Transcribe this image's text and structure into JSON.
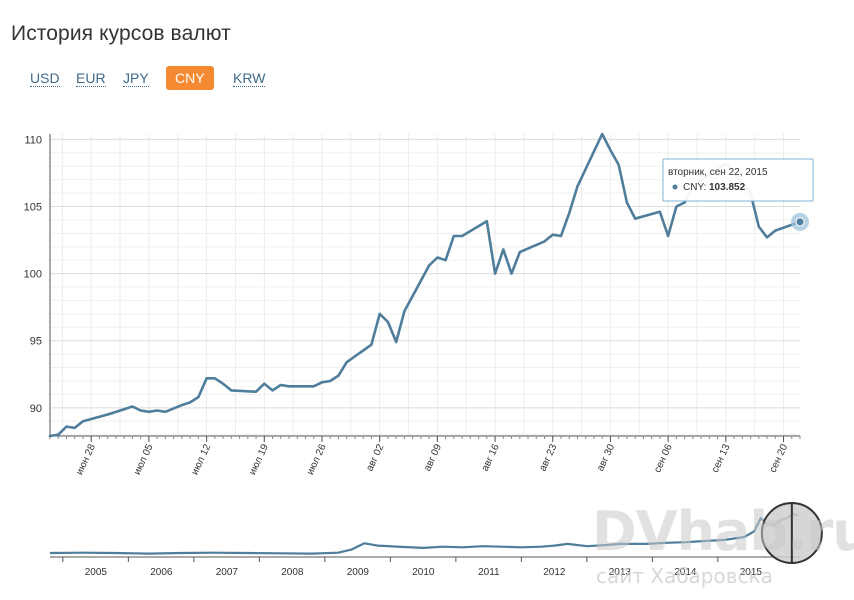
{
  "page": {
    "title": "История курсов валют"
  },
  "tabs": [
    {
      "id": "usd",
      "label": "USD",
      "active": false
    },
    {
      "id": "eur",
      "label": "EUR",
      "active": false
    },
    {
      "id": "jpy",
      "label": "JPY",
      "active": false
    },
    {
      "id": "cny",
      "label": "CNY",
      "active": true
    },
    {
      "id": "krw",
      "label": "KRW",
      "active": false
    }
  ],
  "tooltip": {
    "date": "вторник, сен 22, 2015",
    "series_label": "CNY:",
    "value": "103.852"
  },
  "watermark": {
    "big": "DVhab.ru",
    "small": "сайт Хабаровска"
  },
  "colors": {
    "line": "#4f7d9c",
    "accent": "#f58a32",
    "tooltip_border": "#7fb4d6"
  },
  "chart_data": [
    {
      "type": "line",
      "id": "main",
      "series": [
        {
          "name": "CNY"
        }
      ],
      "yticks": [
        90,
        95,
        100,
        105,
        110
      ],
      "ylim": [
        87.9,
        110.4
      ],
      "xlim": [
        "2015-06-23",
        "2015-09-22"
      ],
      "xticks": [
        "2015-06-28",
        "2015-07-05",
        "2015-07-12",
        "2015-07-19",
        "2015-07-26",
        "2015-08-02",
        "2015-08-09",
        "2015-08-16",
        "2015-08-23",
        "2015-08-30",
        "2015-09-06",
        "2015-09-13",
        "2015-09-20"
      ],
      "xtick_labels": [
        "июн 28",
        "июл 05",
        "июл 12",
        "июл 19",
        "июл 26",
        "авг 02",
        "авг 09",
        "авг 16",
        "авг 23",
        "авг 30",
        "сен 06",
        "сен 13",
        "сен 20"
      ],
      "grid": true,
      "points": [
        [
          "2015-06-23",
          87.9
        ],
        [
          "2015-06-24",
          88.0
        ],
        [
          "2015-06-25",
          88.6
        ],
        [
          "2015-06-26",
          88.5
        ],
        [
          "2015-06-27",
          89.0
        ],
        [
          "2015-06-30",
          89.5
        ],
        [
          "2015-07-02",
          89.9
        ],
        [
          "2015-07-03",
          90.1
        ],
        [
          "2015-07-04",
          89.8
        ],
        [
          "2015-07-05",
          89.7
        ],
        [
          "2015-07-06",
          89.8
        ],
        [
          "2015-07-07",
          89.7
        ],
        [
          "2015-07-09",
          90.2
        ],
        [
          "2015-07-10",
          90.4
        ],
        [
          "2015-07-11",
          90.8
        ],
        [
          "2015-07-12",
          92.2
        ],
        [
          "2015-07-13",
          92.2
        ],
        [
          "2015-07-14",
          91.8
        ],
        [
          "2015-07-15",
          91.3
        ],
        [
          "2015-07-18",
          91.2
        ],
        [
          "2015-07-19",
          91.8
        ],
        [
          "2015-07-20",
          91.3
        ],
        [
          "2015-07-21",
          91.7
        ],
        [
          "2015-07-22",
          91.6
        ],
        [
          "2015-07-25",
          91.6
        ],
        [
          "2015-07-26",
          91.9
        ],
        [
          "2015-07-27",
          92.0
        ],
        [
          "2015-07-28",
          92.4
        ],
        [
          "2015-07-29",
          93.4
        ],
        [
          "2015-08-01",
          94.7
        ],
        [
          "2015-08-02",
          97.0
        ],
        [
          "2015-08-03",
          96.4
        ],
        [
          "2015-08-04",
          94.9
        ],
        [
          "2015-08-05",
          97.2
        ],
        [
          "2015-08-08",
          100.6
        ],
        [
          "2015-08-09",
          101.2
        ],
        [
          "2015-08-10",
          101.0
        ],
        [
          "2015-08-11",
          102.8
        ],
        [
          "2015-08-12",
          102.8
        ],
        [
          "2015-08-15",
          103.9
        ],
        [
          "2015-08-16",
          100.0
        ],
        [
          "2015-08-17",
          101.8
        ],
        [
          "2015-08-18",
          100.0
        ],
        [
          "2015-08-19",
          101.6
        ],
        [
          "2015-08-22",
          102.4
        ],
        [
          "2015-08-23",
          102.9
        ],
        [
          "2015-08-24",
          102.8
        ],
        [
          "2015-08-25",
          104.5
        ],
        [
          "2015-08-26",
          106.5
        ],
        [
          "2015-08-29",
          110.4
        ],
        [
          "2015-08-30",
          109.2
        ],
        [
          "2015-08-31",
          108.1
        ],
        [
          "2015-09-01",
          105.3
        ],
        [
          "2015-09-02",
          104.1
        ],
        [
          "2015-09-05",
          104.6
        ],
        [
          "2015-09-06",
          102.8
        ],
        [
          "2015-09-07",
          105.0
        ],
        [
          "2015-09-08",
          105.3
        ],
        [
          "2015-09-09",
          106.5
        ],
        [
          "2015-09-12",
          107.8
        ],
        [
          "2015-09-13",
          108.2
        ],
        [
          "2015-09-16",
          106.0
        ],
        [
          "2015-09-17",
          103.5
        ],
        [
          "2015-09-18",
          102.7
        ],
        [
          "2015-09-19",
          103.2
        ],
        [
          "2015-09-22",
          103.852
        ]
      ]
    },
    {
      "type": "line",
      "id": "navigator",
      "xlim": [
        2004.3,
        2015.75
      ],
      "ylim": [
        20,
        120
      ],
      "xtick_labels": [
        "2005",
        "2006",
        "2007",
        "2008",
        "2009",
        "2010",
        "2011",
        "2012",
        "2013",
        "2014",
        "2015"
      ],
      "xticks": [
        2005,
        2006,
        2007,
        2008,
        2009,
        2010,
        2011,
        2012,
        2013,
        2014,
        2015
      ],
      "selection": [
        2015.47,
        2015.72
      ],
      "points": [
        [
          2004.3,
          27
        ],
        [
          2004.8,
          27.5
        ],
        [
          2005.3,
          27
        ],
        [
          2005.8,
          26
        ],
        [
          2006.3,
          27
        ],
        [
          2006.8,
          27.5
        ],
        [
          2007.3,
          27
        ],
        [
          2007.8,
          26.5
        ],
        [
          2008.3,
          26
        ],
        [
          2008.7,
          27.5
        ],
        [
          2008.9,
          33
        ],
        [
          2009.1,
          44
        ],
        [
          2009.3,
          40
        ],
        [
          2009.7,
          37.5
        ],
        [
          2010.0,
          36
        ],
        [
          2010.3,
          38
        ],
        [
          2010.6,
          37
        ],
        [
          2010.9,
          39
        ],
        [
          2011.2,
          38
        ],
        [
          2011.5,
          37
        ],
        [
          2011.8,
          38
        ],
        [
          2012.0,
          40
        ],
        [
          2012.2,
          43
        ],
        [
          2012.5,
          39
        ],
        [
          2012.8,
          41
        ],
        [
          2013.0,
          43
        ],
        [
          2013.4,
          43
        ],
        [
          2013.7,
          45
        ],
        [
          2014.0,
          46
        ],
        [
          2014.3,
          48
        ],
        [
          2014.6,
          50
        ],
        [
          2014.9,
          55
        ],
        [
          2015.05,
          65
        ],
        [
          2015.15,
          88
        ],
        [
          2015.25,
          78
        ],
        [
          2015.35,
          76
        ],
        [
          2015.45,
          85
        ],
        [
          2015.55,
          88
        ],
        [
          2015.65,
          96
        ],
        [
          2015.72,
          92
        ]
      ]
    }
  ]
}
